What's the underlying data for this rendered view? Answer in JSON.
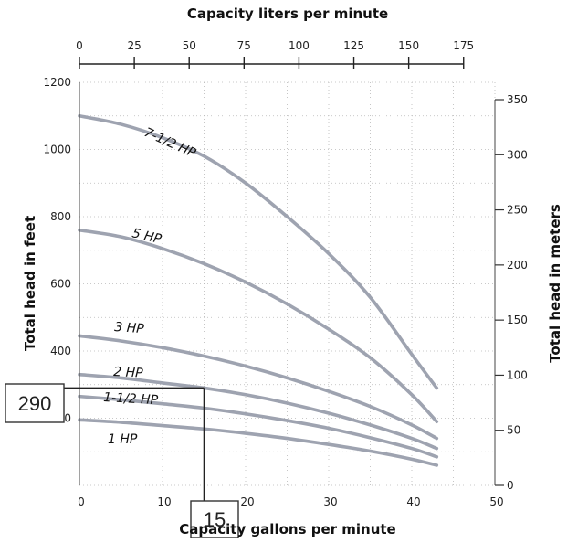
{
  "chart_data": {
    "type": "line",
    "title": "",
    "xlabel": "Capacity gallons per minute",
    "ylabel": "Total head in feet",
    "top_xlabel": "Capacity liters per minute",
    "right_ylabel": "Total head in meters",
    "xlim": [
      0,
      50
    ],
    "ylim": [
      0,
      1200
    ],
    "top_xlim": [
      0,
      189.25
    ],
    "right_ylim": [
      0,
      365.76
    ],
    "grid": true,
    "x_ticks": [
      "0",
      "10",
      "20",
      "30",
      "40",
      "50"
    ],
    "y_ticks": [
      "200",
      "400",
      "600",
      "800",
      "1000",
      "1200"
    ],
    "top_ticks": [
      {
        "value": 0,
        "label": "0"
      },
      {
        "value": 25,
        "label": "25"
      },
      {
        "value": 50,
        "label": "50"
      },
      {
        "value": 75,
        "label": "75"
      },
      {
        "value": 100,
        "label": "100"
      },
      {
        "value": 125,
        "label": "125"
      },
      {
        "value": 150,
        "label": "150"
      },
      {
        "value": 175,
        "label": "175"
      }
    ],
    "right_ticks": [
      {
        "value": 0,
        "label": "0"
      },
      {
        "value": 50,
        "label": "50"
      },
      {
        "value": 100,
        "label": "100"
      },
      {
        "value": 150,
        "label": "150"
      },
      {
        "value": 200,
        "label": "200"
      },
      {
        "value": 250,
        "label": "250"
      },
      {
        "value": 300,
        "label": "300"
      },
      {
        "value": 350,
        "label": "350"
      }
    ],
    "series": [
      {
        "name": "7-1/2 HP",
        "x": [
          0,
          5,
          10,
          15,
          20,
          25,
          30,
          35,
          40,
          43
        ],
        "y": [
          1100,
          1075,
          1035,
          980,
          900,
          800,
          690,
          560,
          390,
          290
        ]
      },
      {
        "name": "5 HP",
        "x": [
          0,
          5,
          10,
          15,
          20,
          25,
          30,
          35,
          40,
          43
        ],
        "y": [
          760,
          740,
          705,
          660,
          605,
          540,
          465,
          380,
          270,
          190
        ]
      },
      {
        "name": "3 HP",
        "x": [
          0,
          5,
          10,
          15,
          20,
          25,
          30,
          35,
          40,
          43
        ],
        "y": [
          445,
          430,
          410,
          385,
          355,
          320,
          280,
          235,
          180,
          140
        ]
      },
      {
        "name": "2 HP",
        "x": [
          0,
          5,
          10,
          15,
          20,
          25,
          30,
          35,
          40,
          43
        ],
        "y": [
          330,
          320,
          305,
          290,
          270,
          245,
          215,
          180,
          140,
          110
        ]
      },
      {
        "name": "1-1/2 HP",
        "x": [
          0,
          5,
          10,
          15,
          20,
          25,
          30,
          35,
          40,
          43
        ],
        "y": [
          265,
          255,
          243,
          230,
          213,
          193,
          170,
          142,
          110,
          85
        ]
      },
      {
        "name": "1 HP",
        "x": [
          0,
          5,
          10,
          15,
          20,
          25,
          30,
          35,
          40,
          43
        ],
        "y": [
          195,
          188,
          178,
          168,
          155,
          140,
          122,
          102,
          78,
          60
        ]
      }
    ],
    "annotations": [
      {
        "text": "290",
        "x": 15,
        "y": 290,
        "box": "left"
      },
      {
        "text": "15",
        "x": 15,
        "y": 290,
        "box": "bottom"
      }
    ]
  }
}
